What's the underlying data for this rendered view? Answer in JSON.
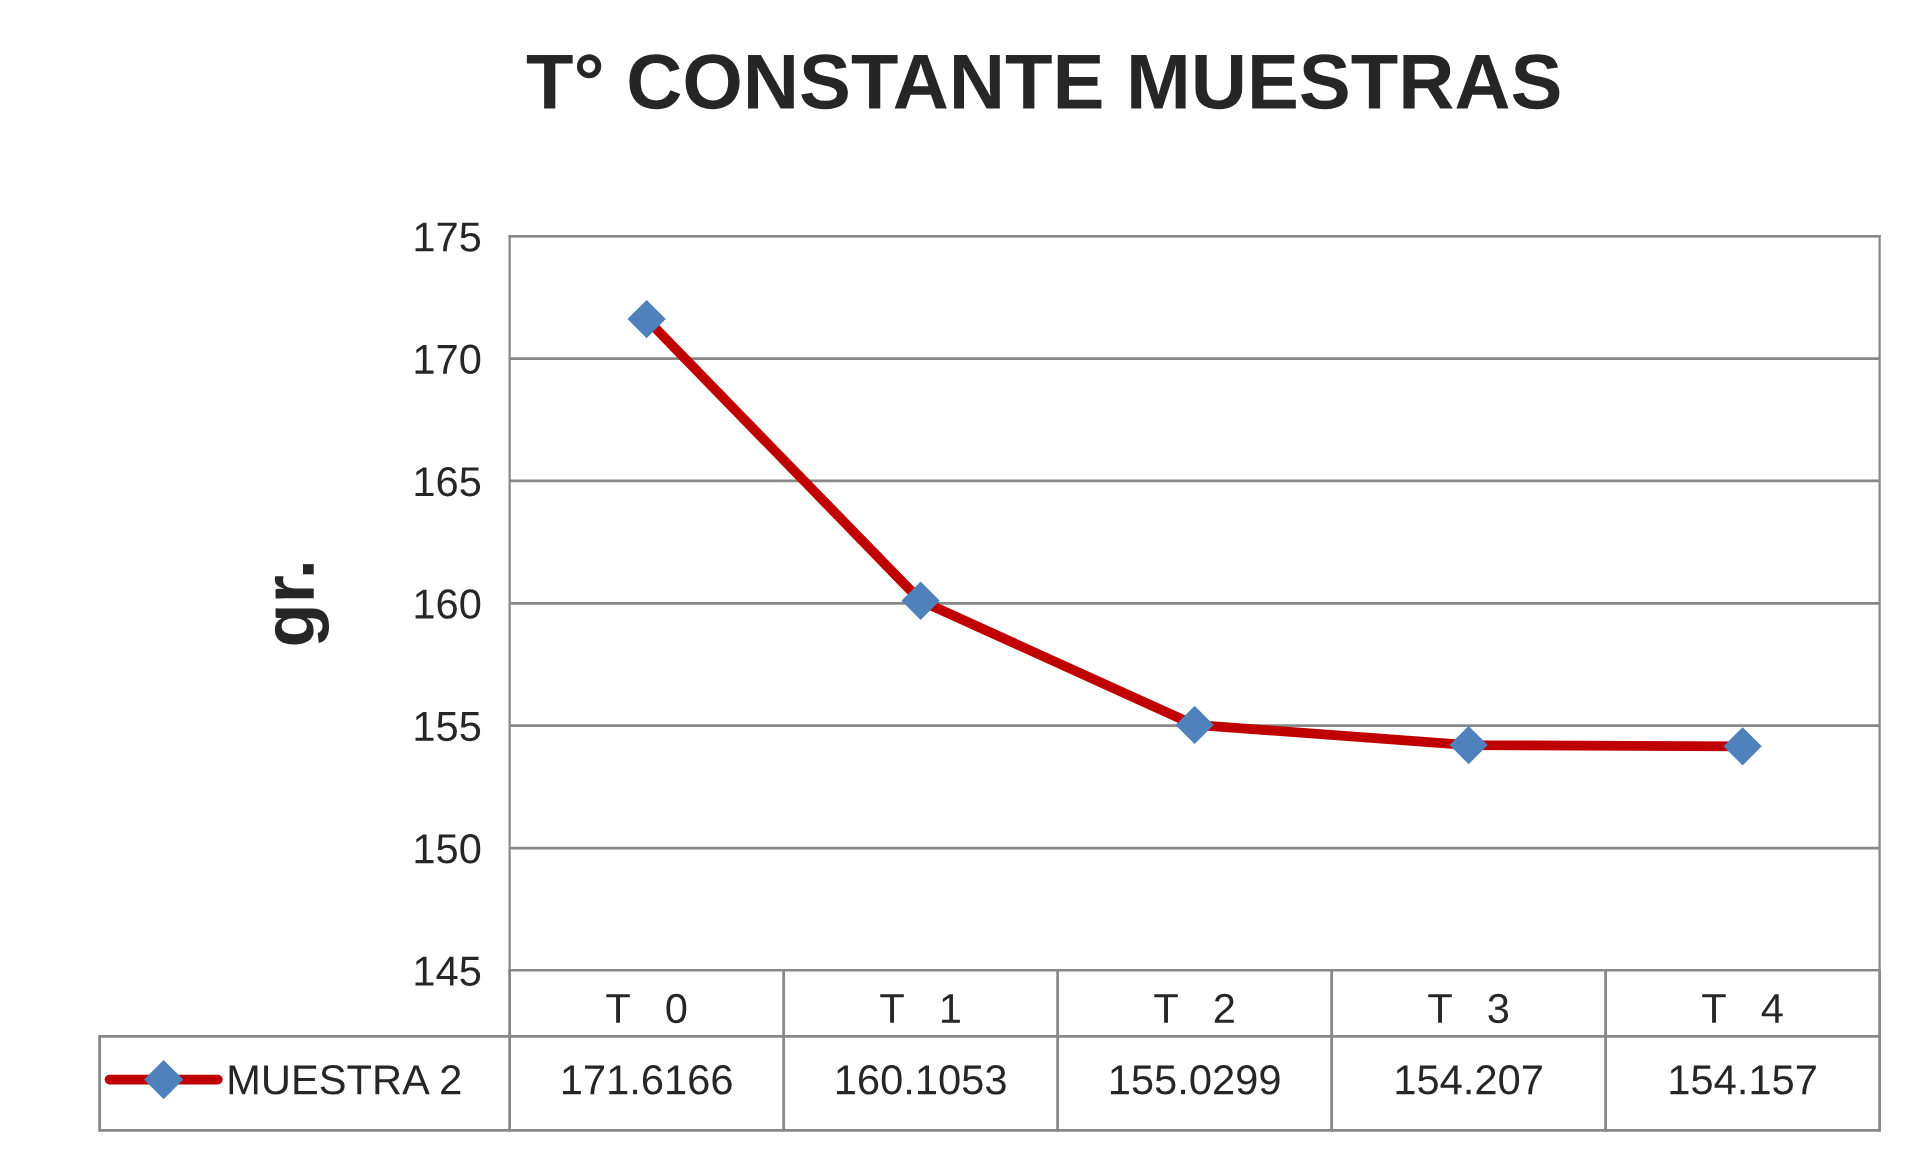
{
  "chart_data": {
    "type": "line",
    "title": "T° CONSTANTE MUESTRAS",
    "ylabel": "gr.",
    "categories": [
      "T   0",
      "T   1",
      "T   2",
      "T   3",
      "T   4"
    ],
    "series": [
      {
        "name": "MUESTRA 2",
        "color": "#c00000",
        "values": [
          171.6166,
          160.1053,
          155.0299,
          154.207,
          154.157
        ]
      }
    ],
    "ylim": [
      145,
      175
    ],
    "yticks": [
      145,
      150,
      155,
      160,
      165,
      170,
      175
    ],
    "grid": "y",
    "legend": "bottom",
    "marker": "diamond",
    "line_style": "solid",
    "data_labels": true
  }
}
